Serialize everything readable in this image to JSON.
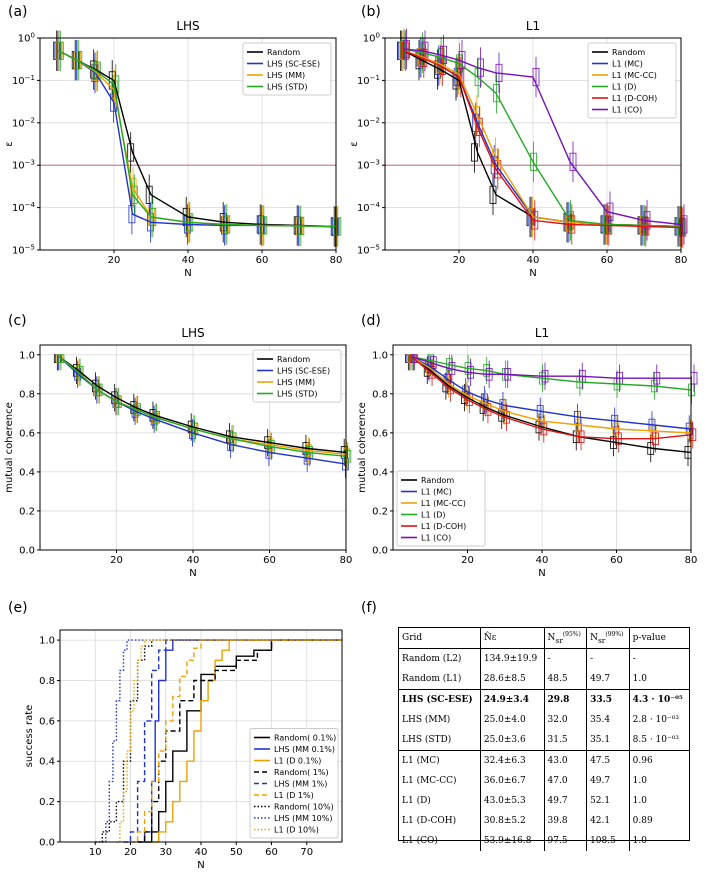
{
  "panels": {
    "a": {
      "label": "(a)",
      "title": "LHS"
    },
    "b": {
      "label": "(b)",
      "title": "L1"
    },
    "c": {
      "label": "(c)",
      "title": "LHS"
    },
    "d": {
      "label": "(d)",
      "title": "L1"
    },
    "e": {
      "label": "(e)"
    },
    "f": {
      "label": "(f)"
    }
  },
  "chart_data": [
    {
      "id": "a",
      "type": "line",
      "title": "LHS",
      "xlabel": "N",
      "ylabel": "ε",
      "yscale": "log",
      "xlim": [
        0,
        80
      ],
      "ylim": [
        1e-05,
        1
      ],
      "xticks": [
        20,
        40,
        60,
        80
      ],
      "xtick_labels": [
        "20",
        "40",
        "60",
        "80"
      ],
      "yticks": [
        1e-05,
        0.0001,
        0.001,
        0.01,
        0.1,
        1
      ],
      "ytick_labels": [
        "10^-5",
        "10^-4",
        "10^-3",
        "10^-2",
        "10^-1",
        "10^0"
      ],
      "hline": 0.001,
      "hline_color": "#c05080",
      "legend_position": "top-right",
      "x": [
        5,
        10,
        15,
        20,
        25,
        30,
        40,
        50,
        60,
        70,
        80
      ],
      "series": [
        {
          "name": "Random",
          "color": "#000000",
          "values": [
            0.5,
            0.3,
            0.18,
            0.1,
            0.002,
            0.0002,
            6e-05,
            4.5e-05,
            4e-05,
            3.8e-05,
            3.6e-05
          ]
        },
        {
          "name": "LHS (SC-ESE)",
          "color": "#2233cc",
          "values": [
            0.5,
            0.3,
            0.15,
            0.03,
            7e-05,
            4.5e-05,
            4e-05,
            3.8e-05,
            3.8e-05,
            3.7e-05,
            3.5e-05
          ]
        },
        {
          "name": "LHS (MM)",
          "color": "#f0a000",
          "values": [
            0.5,
            0.3,
            0.16,
            0.06,
            0.0003,
            6e-05,
            4.5e-05,
            4e-05,
            3.8e-05,
            3.7e-05,
            3.6e-05
          ]
        },
        {
          "name": "LHS (STD)",
          "color": "#22aa22",
          "values": [
            0.5,
            0.3,
            0.17,
            0.08,
            0.0002,
            6e-05,
            4.5e-05,
            4e-05,
            3.8e-05,
            3.7e-05,
            3.6e-05
          ]
        }
      ]
    },
    {
      "id": "b",
      "type": "line",
      "title": "L1",
      "xlabel": "N",
      "ylabel": "ε",
      "yscale": "log",
      "xlim": [
        0,
        80
      ],
      "ylim": [
        1e-05,
        1
      ],
      "xticks": [
        20,
        40,
        60,
        80
      ],
      "xtick_labels": [
        "20",
        "40",
        "60",
        "80"
      ],
      "yticks": [
        1e-05,
        0.0001,
        0.001,
        0.01,
        0.1,
        1
      ],
      "ytick_labels": [
        "10^-5",
        "10^-4",
        "10^-3",
        "10^-2",
        "10^-1",
        "10^0"
      ],
      "hline": 0.001,
      "hline_color": "#c05080",
      "legend_position": "top-right",
      "x": [
        5,
        10,
        15,
        20,
        25,
        30,
        40,
        50,
        60,
        70,
        80
      ],
      "series": [
        {
          "name": "Random",
          "color": "#000000",
          "values": [
            0.5,
            0.3,
            0.18,
            0.1,
            0.002,
            0.0002,
            6e-05,
            4.5e-05,
            4e-05,
            3.8e-05,
            3.6e-05
          ]
        },
        {
          "name": "L1 (MC)",
          "color": "#2233cc",
          "values": [
            0.5,
            0.35,
            0.22,
            0.12,
            0.01,
            0.001,
            6e-05,
            4.5e-05,
            4e-05,
            3.8e-05,
            3.6e-05
          ]
        },
        {
          "name": "L1 (MC-CC)",
          "color": "#f0a000",
          "values": [
            0.5,
            0.36,
            0.24,
            0.14,
            0.015,
            0.0015,
            6e-05,
            4.5e-05,
            4e-05,
            3.8e-05,
            3.6e-05
          ]
        },
        {
          "name": "L1 (D)",
          "color": "#22aa22",
          "values": [
            0.55,
            0.45,
            0.35,
            0.25,
            0.12,
            0.05,
            0.0012,
            5e-05,
            4e-05,
            3.8e-05,
            3.6e-05
          ]
        },
        {
          "name": "L1 (D-COH)",
          "color": "#dd1111",
          "values": [
            0.5,
            0.34,
            0.22,
            0.12,
            0.008,
            0.0008,
            5e-05,
            4e-05,
            3.8e-05,
            3.6e-05,
            3.4e-05
          ]
        },
        {
          "name": "L1 (CO)",
          "color": "#7711bb",
          "values": [
            0.55,
            0.5,
            0.4,
            0.3,
            0.2,
            0.15,
            0.12,
            0.0012,
            8e-05,
            5e-05,
            4e-05
          ]
        }
      ]
    },
    {
      "id": "c",
      "type": "line",
      "title": "LHS",
      "xlabel": "N",
      "ylabel": "mutual coherence",
      "xlim": [
        0,
        80
      ],
      "ylim": [
        0,
        1.05
      ],
      "xticks": [
        20,
        40,
        60,
        80
      ],
      "xtick_labels": [
        "20",
        "40",
        "60",
        "80"
      ],
      "yticks": [
        0,
        0.2,
        0.4,
        0.6,
        0.8,
        1.0
      ],
      "ytick_labels": [
        "0.0",
        "0.2",
        "0.4",
        "0.6",
        "0.8",
        "1.0"
      ],
      "legend_position": "top-right",
      "x": [
        5,
        10,
        15,
        20,
        25,
        30,
        40,
        50,
        60,
        70,
        80
      ],
      "series": [
        {
          "name": "Random",
          "color": "#000000",
          "values": [
            0.99,
            0.92,
            0.84,
            0.78,
            0.73,
            0.69,
            0.63,
            0.58,
            0.55,
            0.52,
            0.5
          ]
        },
        {
          "name": "LHS (SC-ESE)",
          "color": "#2233cc",
          "values": [
            0.99,
            0.9,
            0.82,
            0.76,
            0.71,
            0.67,
            0.6,
            0.54,
            0.5,
            0.47,
            0.44
          ]
        },
        {
          "name": "LHS (MM)",
          "color": "#f0a000",
          "values": [
            0.99,
            0.91,
            0.82,
            0.76,
            0.72,
            0.68,
            0.62,
            0.57,
            0.54,
            0.51,
            0.49
          ]
        },
        {
          "name": "LHS (STD)",
          "color": "#22aa22",
          "values": [
            0.99,
            0.91,
            0.82,
            0.76,
            0.72,
            0.68,
            0.62,
            0.57,
            0.53,
            0.5,
            0.48
          ]
        }
      ]
    },
    {
      "id": "d",
      "type": "line",
      "title": "L1",
      "xlabel": "N",
      "ylabel": "mutual coherence",
      "xlim": [
        0,
        80
      ],
      "ylim": [
        0,
        1.05
      ],
      "xticks": [
        20,
        40,
        60,
        80
      ],
      "xtick_labels": [
        "20",
        "40",
        "60",
        "80"
      ],
      "yticks": [
        0,
        0.2,
        0.4,
        0.6,
        0.8,
        1.0
      ],
      "ytick_labels": [
        "0.0",
        "0.2",
        "0.4",
        "0.6",
        "0.8",
        "1.0"
      ],
      "legend_position": "bottom-left",
      "x": [
        5,
        10,
        15,
        20,
        25,
        30,
        40,
        50,
        60,
        70,
        80
      ],
      "series": [
        {
          "name": "Random",
          "color": "#000000",
          "values": [
            0.99,
            0.92,
            0.84,
            0.78,
            0.73,
            0.69,
            0.63,
            0.58,
            0.55,
            0.52,
            0.5
          ]
        },
        {
          "name": "L1 (MC)",
          "color": "#2233cc",
          "values": [
            0.99,
            0.94,
            0.87,
            0.81,
            0.77,
            0.74,
            0.71,
            0.68,
            0.66,
            0.64,
            0.62
          ]
        },
        {
          "name": "L1 (MC-CC)",
          "color": "#f0a000",
          "values": [
            0.99,
            0.93,
            0.85,
            0.79,
            0.75,
            0.71,
            0.66,
            0.64,
            0.62,
            0.61,
            0.6
          ]
        },
        {
          "name": "L1 (D)",
          "color": "#22aa22",
          "values": [
            0.99,
            0.97,
            0.95,
            0.93,
            0.92,
            0.9,
            0.88,
            0.86,
            0.85,
            0.84,
            0.82
          ]
        },
        {
          "name": "L1 (D-COH)",
          "color": "#dd1111",
          "values": [
            0.99,
            0.91,
            0.83,
            0.77,
            0.72,
            0.68,
            0.62,
            0.58,
            0.57,
            0.57,
            0.59
          ]
        },
        {
          "name": "L1 (CO)",
          "color": "#7711bb",
          "values": [
            0.99,
            0.96,
            0.93,
            0.91,
            0.9,
            0.9,
            0.89,
            0.89,
            0.88,
            0.88,
            0.88
          ]
        }
      ]
    },
    {
      "id": "e",
      "type": "line",
      "xlabel": "N",
      "ylabel": "success rate",
      "xlim": [
        0,
        80
      ],
      "ylim": [
        0,
        1.05
      ],
      "xticks": [
        10,
        20,
        30,
        40,
        50,
        60,
        70
      ],
      "xtick_labels": [
        "10",
        "20",
        "30",
        "40",
        "50",
        "60",
        "70"
      ],
      "yticks": [
        0,
        0.2,
        0.4,
        0.6,
        0.8,
        1.0
      ],
      "ytick_labels": [
        "0.0",
        "0.2",
        "0.4",
        "0.6",
        "0.8",
        "1.0"
      ],
      "legend_position": "bottom-right",
      "series": [
        {
          "name": "Random( 0.1%)",
          "color": "#000000",
          "dash": "solid",
          "x": [
            24,
            26,
            28,
            30,
            32,
            36,
            40,
            44,
            50,
            55,
            60,
            80
          ],
          "values": [
            0,
            0.05,
            0.15,
            0.3,
            0.45,
            0.65,
            0.83,
            0.87,
            0.92,
            0.95,
            1,
            1
          ]
        },
        {
          "name": "LHS (MM 0.1%)",
          "color": "#2233cc",
          "dash": "solid",
          "x": [
            22,
            24,
            26,
            27,
            28,
            30,
            32,
            80
          ],
          "values": [
            0,
            0.05,
            0.3,
            0.6,
            0.8,
            0.95,
            1,
            1
          ]
        },
        {
          "name": "L1 (D 0.1%)",
          "color": "#f0a000",
          "dash": "solid",
          "x": [
            26,
            28,
            30,
            32,
            34,
            36,
            38,
            40,
            42,
            44,
            46,
            48,
            80
          ],
          "values": [
            0,
            0.05,
            0.1,
            0.2,
            0.3,
            0.4,
            0.55,
            0.7,
            0.8,
            0.9,
            0.95,
            1,
            1
          ]
        },
        {
          "name": "Random( 1%)",
          "color": "#000000",
          "dash": "dashed",
          "x": [
            22,
            24,
            26,
            28,
            30,
            34,
            38,
            44,
            50,
            56,
            60,
            80
          ],
          "values": [
            0,
            0.05,
            0.2,
            0.4,
            0.55,
            0.7,
            0.8,
            0.85,
            0.9,
            0.95,
            1,
            1
          ]
        },
        {
          "name": "LHS (MM 1%)",
          "color": "#2233cc",
          "dash": "dashed",
          "x": [
            18,
            20,
            22,
            24,
            26,
            28,
            30,
            80
          ],
          "values": [
            0,
            0.05,
            0.3,
            0.6,
            0.85,
            0.95,
            1,
            1
          ]
        },
        {
          "name": "L1 (D 1%)",
          "color": "#f0a000",
          "dash": "dashed",
          "x": [
            20,
            22,
            24,
            26,
            28,
            30,
            32,
            34,
            36,
            38,
            40,
            80
          ],
          "values": [
            0,
            0.05,
            0.15,
            0.3,
            0.45,
            0.6,
            0.72,
            0.82,
            0.9,
            0.96,
            1,
            1
          ]
        },
        {
          "name": "Random( 10%)",
          "color": "#000000",
          "dash": "dotted",
          "x": [
            10,
            12,
            14,
            16,
            18,
            20,
            22,
            24,
            26,
            80
          ],
          "values": [
            0,
            0.05,
            0.1,
            0.2,
            0.4,
            0.7,
            0.9,
            0.97,
            1,
            1
          ]
        },
        {
          "name": "LHS (MM 10%)",
          "color": "#2233cc",
          "dash": "dotted",
          "x": [
            12,
            13,
            14,
            15,
            16,
            17,
            18,
            19,
            20,
            80
          ],
          "values": [
            0,
            0.1,
            0.3,
            0.5,
            0.7,
            0.85,
            0.95,
            1,
            1,
            1
          ]
        },
        {
          "name": "L1 (D 10%)",
          "color": "#f0a000",
          "dash": "dotted",
          "x": [
            16,
            17,
            18,
            19,
            20,
            21,
            22,
            23,
            24,
            80
          ],
          "values": [
            0,
            0.1,
            0.25,
            0.45,
            0.65,
            0.8,
            0.9,
            0.97,
            1,
            1
          ]
        }
      ]
    }
  ],
  "table": {
    "headers": [
      "Grid",
      "N̂ε",
      "N",
      "N",
      "p-value"
    ],
    "header_sub": [
      "",
      "",
      "sr",
      "sr",
      ""
    ],
    "header_sup": [
      "",
      "",
      "(95%)",
      "(99%)",
      ""
    ],
    "rows": [
      {
        "cells": [
          "Random (L2)",
          "134.9±19.9",
          "-",
          "-",
          "-"
        ],
        "style": ""
      },
      {
        "cells": [
          "Random (L1)",
          "28.6±8.5",
          "48.5",
          "49.7",
          "1.0"
        ],
        "style": ""
      },
      {
        "cells": [
          "LHS (SC-ESE)",
          "24.9±3.4",
          "29.8",
          "33.5",
          "4.3 · 10⁻⁰⁵"
        ],
        "style": "sep bold"
      },
      {
        "cells": [
          "LHS (MM)",
          "25.0±4.0",
          "32.0",
          "35.4",
          "2.8 · 10⁻⁰³"
        ],
        "style": ""
      },
      {
        "cells": [
          "LHS (STD)",
          "25.0±3.6",
          "31.5",
          "35.1",
          "8.5 · 10⁻⁰³"
        ],
        "style": ""
      },
      {
        "cells": [
          "L1 (MC)",
          "32.4±6.3",
          "43.0",
          "47.5",
          "0.96"
        ],
        "style": "sep"
      },
      {
        "cells": [
          "L1 (MC-CC)",
          "36.0±6.7",
          "47.0",
          "49.7",
          "1.0"
        ],
        "style": ""
      },
      {
        "cells": [
          "L1 (D)",
          "43.0±5.3",
          "49.7",
          "52.1",
          "1.0"
        ],
        "style": ""
      },
      {
        "cells": [
          "L1 (D-COH)",
          "30.8±5.2",
          "39.8",
          "42.1",
          "0.89"
        ],
        "style": ""
      },
      {
        "cells": [
          "L1 (CO)",
          "53.9±16.8",
          "97.5",
          "108.5",
          "1.0"
        ],
        "style": ""
      }
    ]
  }
}
